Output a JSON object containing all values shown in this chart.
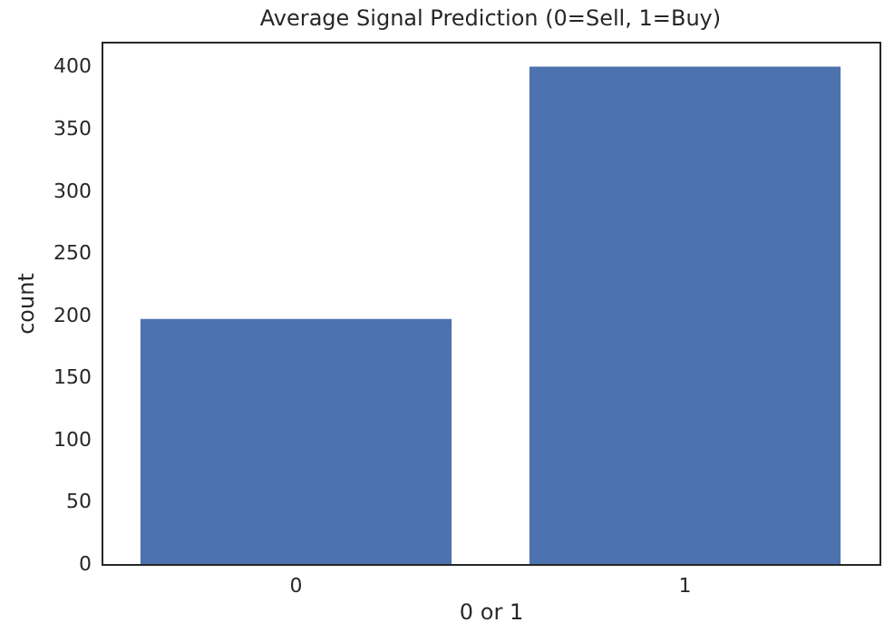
{
  "chart_data": {
    "type": "bar",
    "title": "Average Signal Prediction (0=Sell, 1=Buy)",
    "xlabel": "0 or 1",
    "ylabel": "count",
    "categories": [
      "0",
      "1"
    ],
    "values": [
      197,
      400
    ],
    "color": "#4c72b0",
    "ylim": [
      0,
      420
    ],
    "yticks": [
      0,
      50,
      100,
      150,
      200,
      250,
      300,
      350,
      400
    ],
    "grid": false
  }
}
